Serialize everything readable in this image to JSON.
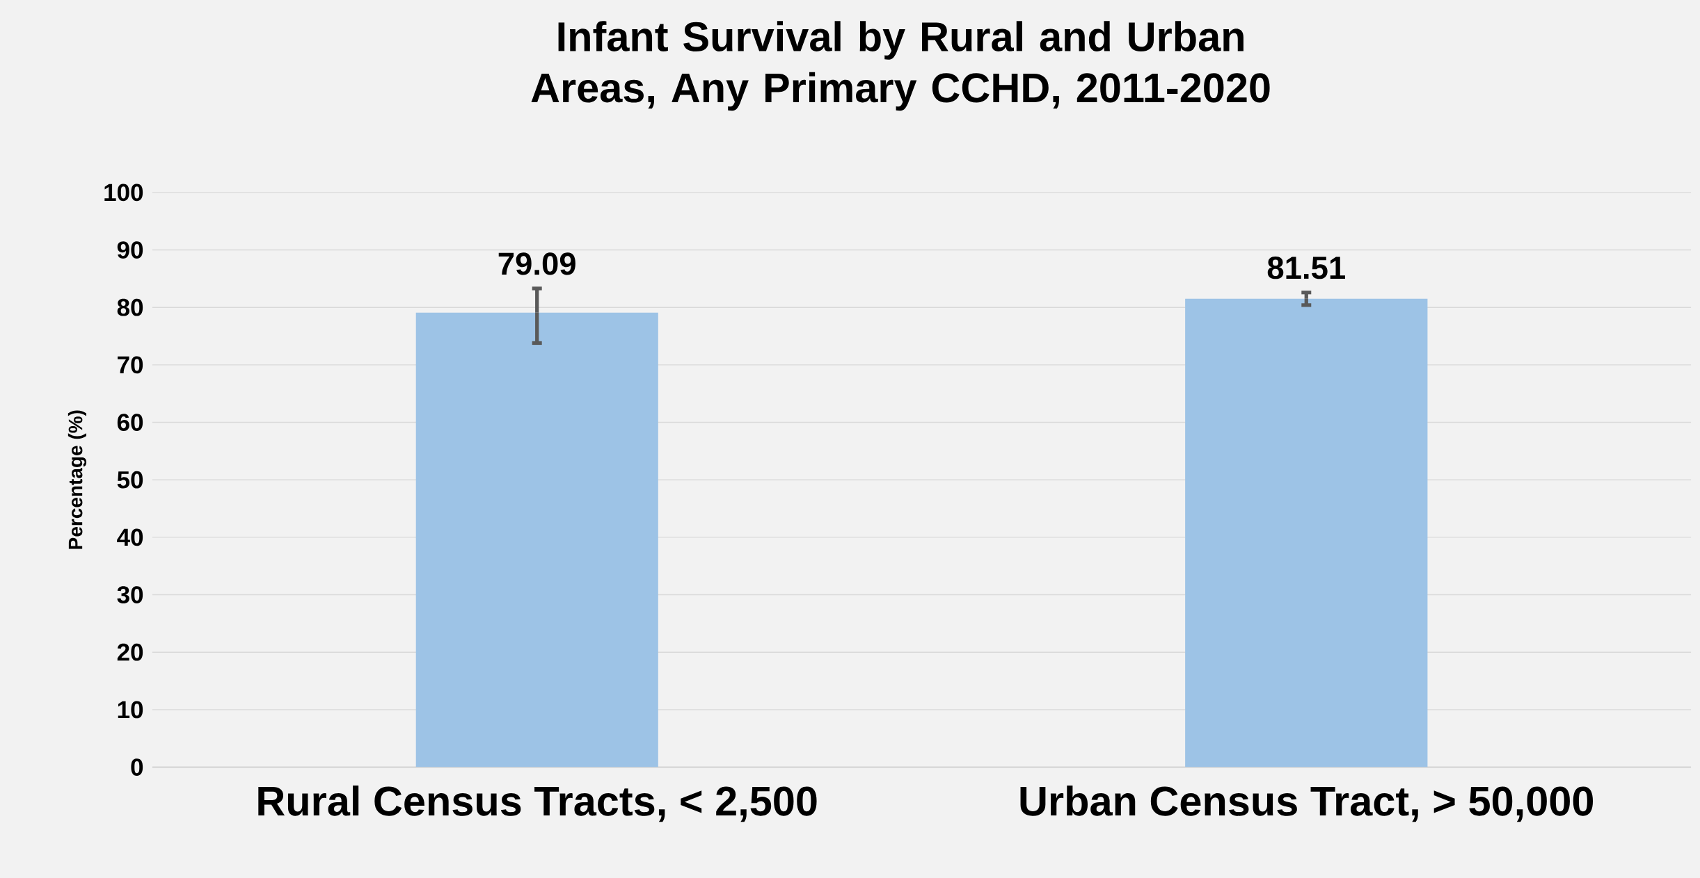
{
  "chart_data": {
    "type": "bar",
    "title": "Infant Survival by Rural and Urban Areas, Any Primary CCHD, 2011-2020",
    "ylabel": "Percentage (%)",
    "categories": [
      "Rural Census Tracts, < 2,500",
      "Urban Census Tract, > 50,000"
    ],
    "values": [
      79.09,
      81.51
    ],
    "color": "#9dc3e6",
    "errors": [
      [
        73.8,
        83.3
      ],
      [
        80.4,
        82.6
      ]
    ],
    "data_labels": true,
    "ylim": [
      0,
      100
    ],
    "yticks": [
      0,
      10,
      20,
      30,
      40,
      50,
      60,
      70,
      80,
      90,
      100
    ],
    "grid": "y"
  }
}
